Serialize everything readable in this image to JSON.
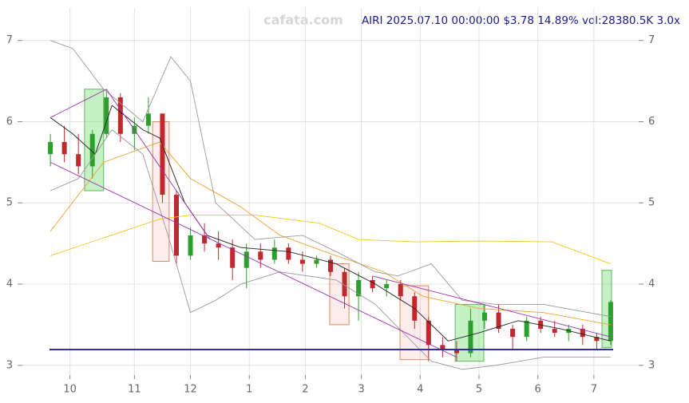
{
  "chart_data": {
    "type": "candlestick",
    "title": "AIRI 2025.07.10 00:00:00 $3.78 14.89% vol:28380.5K 3.0x",
    "watermark": "cafata.com",
    "xlim": [
      0,
      220
    ],
    "xticks": [
      {
        "value": 17,
        "label": "10"
      },
      {
        "value": 40,
        "label": "11"
      },
      {
        "value": 60,
        "label": "12"
      },
      {
        "value": 81,
        "label": "1"
      },
      {
        "value": 101,
        "label": "2"
      },
      {
        "value": 121,
        "label": "3"
      },
      {
        "value": 142,
        "label": "4"
      },
      {
        "value": 163,
        "label": "5"
      },
      {
        "value": 184,
        "label": "6"
      },
      {
        "value": 204,
        "label": "7"
      }
    ],
    "ylim": [
      2.88,
      7.4
    ],
    "yticks": [
      3,
      4,
      5,
      6,
      7
    ],
    "grid": true,
    "up_color": "#2ca02c",
    "down_color": "#c0282d",
    "x": [
      10,
      15,
      20,
      25,
      30,
      35,
      40,
      45,
      50,
      55,
      60,
      65,
      70,
      75,
      80,
      85,
      90,
      95,
      100,
      105,
      110,
      115,
      120,
      125,
      130,
      135,
      140,
      145,
      150,
      155,
      160,
      165,
      170,
      175,
      180,
      185,
      190,
      195,
      200,
      205,
      210
    ],
    "open": [
      5.6,
      5.75,
      5.6,
      5.45,
      5.85,
      6.3,
      5.85,
      5.95,
      6.1,
      5.1,
      4.35,
      4.6,
      4.5,
      4.45,
      4.2,
      4.4,
      4.3,
      4.45,
      4.3,
      4.25,
      4.3,
      4.15,
      3.85,
      4.05,
      3.95,
      4.0,
      3.85,
      3.55,
      3.25,
      3.2,
      3.15,
      3.55,
      3.65,
      3.45,
      3.35,
      3.55,
      3.45,
      3.4,
      3.45,
      3.35,
      3.3
    ],
    "high": [
      5.85,
      5.95,
      5.85,
      5.9,
      6.4,
      6.35,
      6.05,
      6.3,
      6.1,
      5.15,
      4.7,
      4.75,
      4.65,
      4.55,
      4.5,
      4.5,
      4.55,
      4.5,
      4.4,
      4.35,
      4.35,
      4.2,
      4.15,
      4.1,
      4.05,
      4.05,
      3.9,
      3.6,
      3.35,
      3.3,
      3.7,
      3.75,
      3.75,
      3.5,
      3.6,
      3.6,
      3.55,
      3.5,
      3.5,
      3.4,
      3.8
    ],
    "low": [
      5.45,
      5.5,
      5.35,
      5.3,
      5.8,
      5.75,
      5.65,
      5.85,
      5.0,
      4.25,
      4.3,
      4.4,
      4.3,
      4.05,
      3.95,
      4.2,
      4.25,
      4.25,
      4.15,
      4.2,
      4.1,
      3.7,
      3.55,
      3.9,
      3.85,
      3.8,
      3.45,
      3.05,
      3.1,
      3.05,
      3.1,
      3.45,
      3.4,
      3.2,
      3.3,
      3.4,
      3.35,
      3.3,
      3.25,
      3.2,
      3.25
    ],
    "close": [
      5.75,
      5.6,
      5.45,
      5.85,
      6.3,
      5.85,
      5.95,
      6.1,
      5.1,
      4.35,
      4.6,
      4.5,
      4.45,
      4.2,
      4.4,
      4.3,
      4.45,
      4.3,
      4.25,
      4.3,
      4.15,
      3.85,
      4.05,
      3.95,
      4.0,
      3.85,
      3.55,
      3.25,
      3.2,
      3.15,
      3.55,
      3.65,
      3.45,
      3.35,
      3.55,
      3.45,
      3.4,
      3.45,
      3.35,
      3.3,
      3.78
    ],
    "overlays": [
      {
        "color": "#f5c518",
        "x": [
          10,
          49,
          60,
          83,
          106,
          120,
          140,
          163,
          189,
          210
        ],
        "values": [
          4.35,
          4.8,
          4.85,
          4.85,
          4.75,
          4.55,
          4.52,
          4.53,
          4.52,
          4.25
        ]
      },
      {
        "color": "#f0a030",
        "x": [
          10,
          29,
          49,
          60,
          78,
          92,
          112,
          129,
          143,
          163,
          186,
          210
        ],
        "values": [
          4.65,
          5.5,
          5.75,
          5.3,
          4.95,
          4.6,
          4.35,
          4.15,
          3.85,
          3.7,
          3.65,
          3.5
        ]
      },
      {
        "color": "#222222",
        "x": [
          10,
          18,
          26,
          32,
          43,
          49,
          58,
          66,
          78,
          95,
          112,
          126,
          140,
          152,
          163,
          177,
          192,
          210
        ],
        "values": [
          6.05,
          5.85,
          5.6,
          6.2,
          5.9,
          5.8,
          5.0,
          4.6,
          4.45,
          4.4,
          4.25,
          4.0,
          3.7,
          3.3,
          3.4,
          3.55,
          3.45,
          3.3
        ]
      },
      {
        "color": "#999999",
        "x": [
          10,
          18,
          29,
          43,
          53,
          60,
          69,
          83,
          100,
          112,
          126,
          134,
          146,
          157,
          169,
          186,
          210
        ],
        "values": [
          7.0,
          6.9,
          6.4,
          6.0,
          6.8,
          6.5,
          5.0,
          4.55,
          4.6,
          4.4,
          4.15,
          4.1,
          4.25,
          3.8,
          3.75,
          3.75,
          3.6
        ]
      },
      {
        "color": "#999999",
        "x": [
          10,
          20,
          32,
          43,
          52,
          60,
          69,
          78,
          92,
          112,
          126,
          146,
          157,
          169,
          186,
          210
        ],
        "values": [
          5.15,
          5.3,
          5.9,
          5.6,
          4.6,
          3.65,
          3.8,
          4.0,
          4.15,
          4.05,
          3.75,
          3.05,
          2.95,
          3.0,
          3.1,
          3.1
        ]
      },
      {
        "color": "#9b30b0",
        "x": [
          10,
          155
        ],
        "values": [
          5.5,
          3.1
        ]
      },
      {
        "color": "#9b30b0",
        "x": [
          10,
          30,
          67
        ],
        "values": [
          6.05,
          6.4,
          4.55
        ]
      },
      {
        "color": "#9b30b0",
        "x": [
          125,
          210
        ],
        "values": [
          4.1,
          3.35
        ]
      }
    ],
    "zones": [
      {
        "x": [
          22.2,
          29
        ],
        "y": [
          5.15,
          6.4
        ],
        "color": "#7ee07e"
      },
      {
        "x": [
          46.5,
          52.4
        ],
        "y": [
          4.28,
          6.0
        ],
        "color": "#f2a0a0"
      },
      {
        "x": [
          109.7,
          116.6
        ],
        "y": [
          3.5,
          4.25
        ],
        "color": "#f2a0a0"
      },
      {
        "x": [
          134.8,
          145
        ],
        "y": [
          3.07,
          3.98
        ],
        "color": "#f2a0a0"
      },
      {
        "x": [
          154.5,
          164.7
        ],
        "y": [
          3.05,
          3.75
        ],
        "color": "#7ee07e"
      },
      {
        "x": [
          206.9,
          210.3
        ],
        "y": [
          3.22,
          4.17
        ],
        "color": "#7ee07e"
      }
    ]
  }
}
